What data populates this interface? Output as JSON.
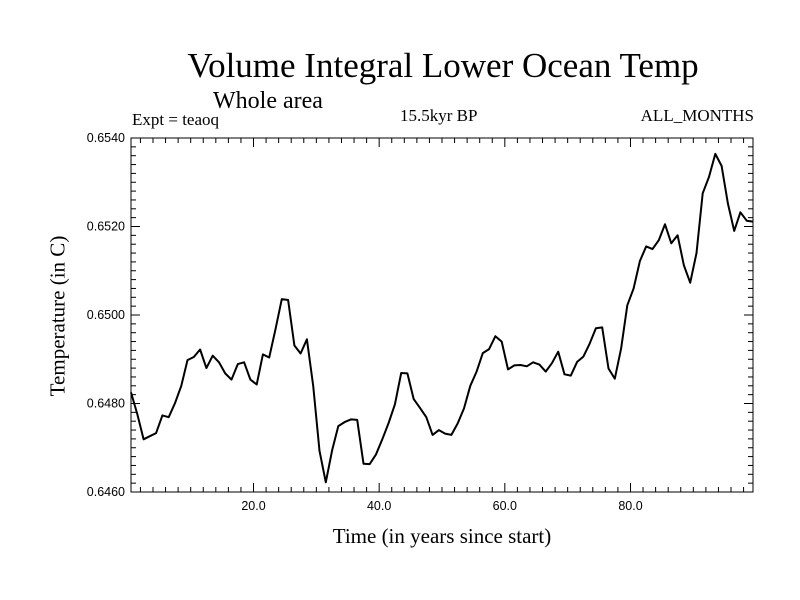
{
  "chart_data": {
    "type": "line",
    "title": "Volume Integral Lower Ocean Temp",
    "subtitle": "Whole area",
    "experiment": "Expt = teaoq",
    "period": "15.5kyr BP",
    "months": "ALL_MONTHS",
    "xlabel": "Time (in years since start)",
    "ylabel": "Temperature (in C)",
    "xlim": [
      0.5,
      99.5
    ],
    "ylim": [
      0.646,
      0.654
    ],
    "xticks": [
      20,
      40,
      60,
      80
    ],
    "xtick_labels": [
      "20.0",
      "40.0",
      "60.0",
      "80.0"
    ],
    "yticks": [
      0.646,
      0.648,
      0.65,
      0.652,
      0.654
    ],
    "ytick_labels": [
      "0.6460",
      "0.6480",
      "0.6500",
      "0.6520",
      "0.6540"
    ],
    "x": [
      0.5,
      1.5,
      2.5,
      3.5,
      4.5,
      5.5,
      6.5,
      7.5,
      8.5,
      9.5,
      10.5,
      11.5,
      12.5,
      13.5,
      14.5,
      15.5,
      16.5,
      17.5,
      18.5,
      19.5,
      20.5,
      21.5,
      22.5,
      23.5,
      24.5,
      25.5,
      26.5,
      27.5,
      28.5,
      29.5,
      30.5,
      31.5,
      32.5,
      33.5,
      34.5,
      35.5,
      36.5,
      37.5,
      38.5,
      39.5,
      40.5,
      41.5,
      42.5,
      43.5,
      44.5,
      45.5,
      46.5,
      47.5,
      48.5,
      49.5,
      50.5,
      51.5,
      52.5,
      53.5,
      54.5,
      55.5,
      56.5,
      57.5,
      58.5,
      59.5,
      60.5,
      61.5,
      62.5,
      63.5,
      64.5,
      65.5,
      66.5,
      67.5,
      68.5,
      69.5,
      70.5,
      71.5,
      72.5,
      73.5,
      74.5,
      75.5,
      76.5,
      77.5,
      78.5,
      79.5,
      80.5,
      81.5,
      82.5,
      83.5,
      84.5,
      85.5,
      86.5,
      87.5,
      88.5,
      89.5,
      90.5,
      91.5,
      92.5,
      93.5,
      94.5,
      95.5,
      96.5,
      97.5,
      98.5,
      99.5
    ],
    "series": [
      {
        "name": "Volume Integral Lower Ocean Temp",
        "values": [
          0.64825,
          0.64776,
          0.64719,
          0.64726,
          0.64733,
          0.64773,
          0.64769,
          0.64801,
          0.6484,
          0.64898,
          0.64905,
          0.64922,
          0.6488,
          0.64908,
          0.64893,
          0.64868,
          0.64854,
          0.64889,
          0.64893,
          0.64854,
          0.64843,
          0.64911,
          0.64904,
          0.64968,
          0.65036,
          0.65034,
          0.64931,
          0.64913,
          0.64945,
          0.6484,
          0.64693,
          0.64622,
          0.64694,
          0.64749,
          0.64758,
          0.64764,
          0.64763,
          0.64664,
          0.64663,
          0.64685,
          0.64719,
          0.64756,
          0.64798,
          0.64869,
          0.64868,
          0.6481,
          0.6479,
          0.64769,
          0.64729,
          0.6474,
          0.64732,
          0.64729,
          0.64755,
          0.64789,
          0.6484,
          0.64872,
          0.64914,
          0.64923,
          0.64952,
          0.6494,
          0.64877,
          0.64886,
          0.64887,
          0.64884,
          0.64893,
          0.64888,
          0.64872,
          0.64891,
          0.64917,
          0.64866,
          0.64863,
          0.64894,
          0.64906,
          0.64935,
          0.6497,
          0.64972,
          0.64879,
          0.64856,
          0.64924,
          0.65022,
          0.6506,
          0.65122,
          0.65155,
          0.65149,
          0.65169,
          0.65205,
          0.65162,
          0.6518,
          0.65112,
          0.65073,
          0.6514,
          0.65275,
          0.65312,
          0.65364,
          0.65337,
          0.65252,
          0.6519,
          0.65232,
          0.65213,
          0.65211
        ]
      }
    ]
  }
}
